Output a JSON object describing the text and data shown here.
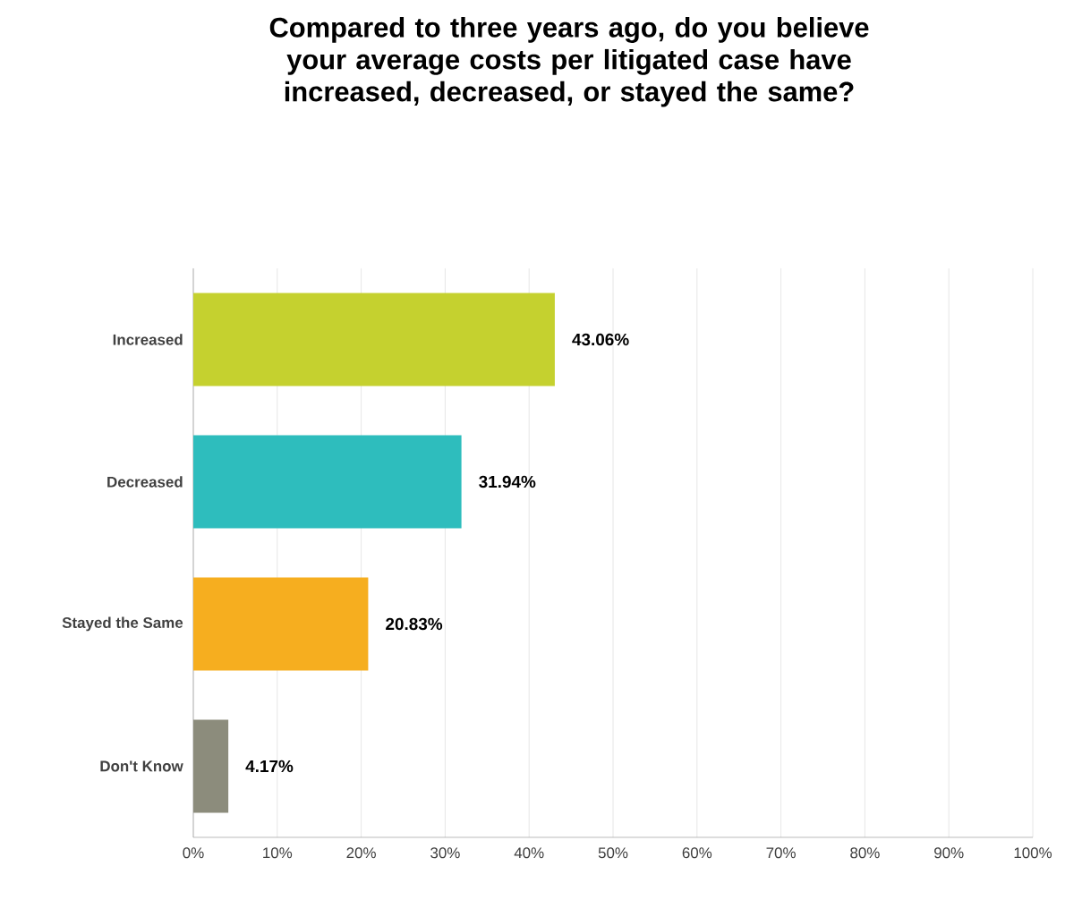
{
  "chart_data": {
    "type": "bar",
    "orientation": "horizontal",
    "title": "Compared to three years ago, do you believe your average costs per litigated case have increased, decreased, or stayed the same?",
    "categories": [
      "Increased",
      "Decreased",
      "Stayed the Same",
      "Don't Know"
    ],
    "values": [
      43.06,
      31.94,
      20.83,
      4.17
    ],
    "colors": [
      "#c5d12f",
      "#2ebdbd",
      "#f6ae1f",
      "#8c8c7c"
    ],
    "value_labels": [
      "43.06%",
      "31.94%",
      "20.83%",
      "4.17%"
    ],
    "xlim": [
      0,
      100
    ],
    "xticks": [
      {
        "value": 0,
        "label": "0%"
      },
      {
        "value": 10,
        "label": "10%"
      },
      {
        "value": 20,
        "label": "20%"
      },
      {
        "value": 30,
        "label": "30%"
      },
      {
        "value": 40,
        "label": "40%"
      },
      {
        "value": 50,
        "label": "50%"
      },
      {
        "value": 60,
        "label": "60%"
      },
      {
        "value": 70,
        "label": "70%"
      },
      {
        "value": 80,
        "label": "80%"
      },
      {
        "value": 90,
        "label": "90%"
      },
      {
        "value": 100,
        "label": "100%"
      }
    ],
    "grid": "x"
  }
}
